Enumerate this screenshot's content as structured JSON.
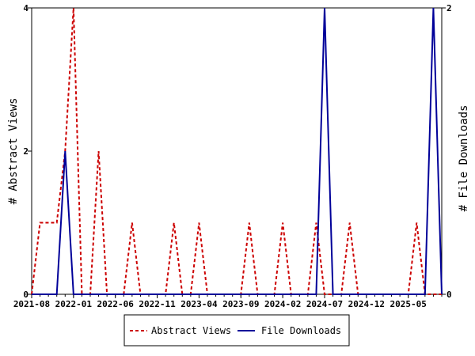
{
  "chart_data": {
    "type": "line",
    "y_left_label": "# Abstract Views",
    "y_right_label": "# File Downloads",
    "y_left_lim": [
      0,
      4
    ],
    "y_right_lim": [
      0,
      2
    ],
    "y_left_ticks": [
      "0",
      "2",
      "4"
    ],
    "y_right_ticks": [
      "0",
      "2"
    ],
    "x_tick_labels": [
      "2021-08",
      "2022-01",
      "2022-06",
      "2022-11",
      "2023-04",
      "2023-09",
      "2024-02",
      "2024-07",
      "2024-12",
      "2025-05"
    ],
    "x": [
      "2021-08",
      "2021-09",
      "2021-10",
      "2021-11",
      "2021-12",
      "2022-01",
      "2022-02",
      "2022-03",
      "2022-04",
      "2022-05",
      "2022-06",
      "2022-07",
      "2022-08",
      "2022-09",
      "2022-10",
      "2022-11",
      "2022-12",
      "2023-01",
      "2023-02",
      "2023-03",
      "2023-04",
      "2023-05",
      "2023-06",
      "2023-07",
      "2023-08",
      "2023-09",
      "2023-10",
      "2023-11",
      "2023-12",
      "2024-01",
      "2024-02",
      "2024-03",
      "2024-04",
      "2024-05",
      "2024-06",
      "2024-07",
      "2024-08",
      "2024-09",
      "2024-10",
      "2024-11",
      "2024-12",
      "2025-01",
      "2025-02",
      "2025-03",
      "2025-04",
      "2025-05",
      "2025-06",
      "2025-07",
      "2025-08",
      "2025-09"
    ],
    "series": [
      {
        "name": "Abstract Views",
        "axis": "left",
        "color": "#cc0000",
        "style": "dashed",
        "values": [
          0,
          1,
          1,
          1,
          2,
          4,
          0,
          0,
          2,
          0,
          0,
          0,
          1,
          0,
          0,
          0,
          0,
          1,
          0,
          0,
          1,
          0,
          0,
          0,
          0,
          0,
          1,
          0,
          0,
          0,
          1,
          0,
          0,
          0,
          1,
          0,
          0,
          0,
          1,
          0,
          0,
          0,
          0,
          0,
          0,
          0,
          1,
          0,
          0,
          0
        ]
      },
      {
        "name": "File Downloads",
        "axis": "right",
        "color": "#000099",
        "style": "solid",
        "values": [
          0,
          0,
          0,
          0,
          1,
          0,
          0,
          0,
          0,
          0,
          0,
          0,
          0,
          0,
          0,
          0,
          0,
          0,
          0,
          0,
          0,
          0,
          0,
          0,
          0,
          0,
          0,
          0,
          0,
          0,
          0,
          0,
          0,
          0,
          0,
          2,
          0,
          0,
          0,
          0,
          0,
          0,
          0,
          0,
          0,
          0,
          0,
          0,
          2,
          0
        ]
      }
    ],
    "legend_position": "bottom"
  }
}
